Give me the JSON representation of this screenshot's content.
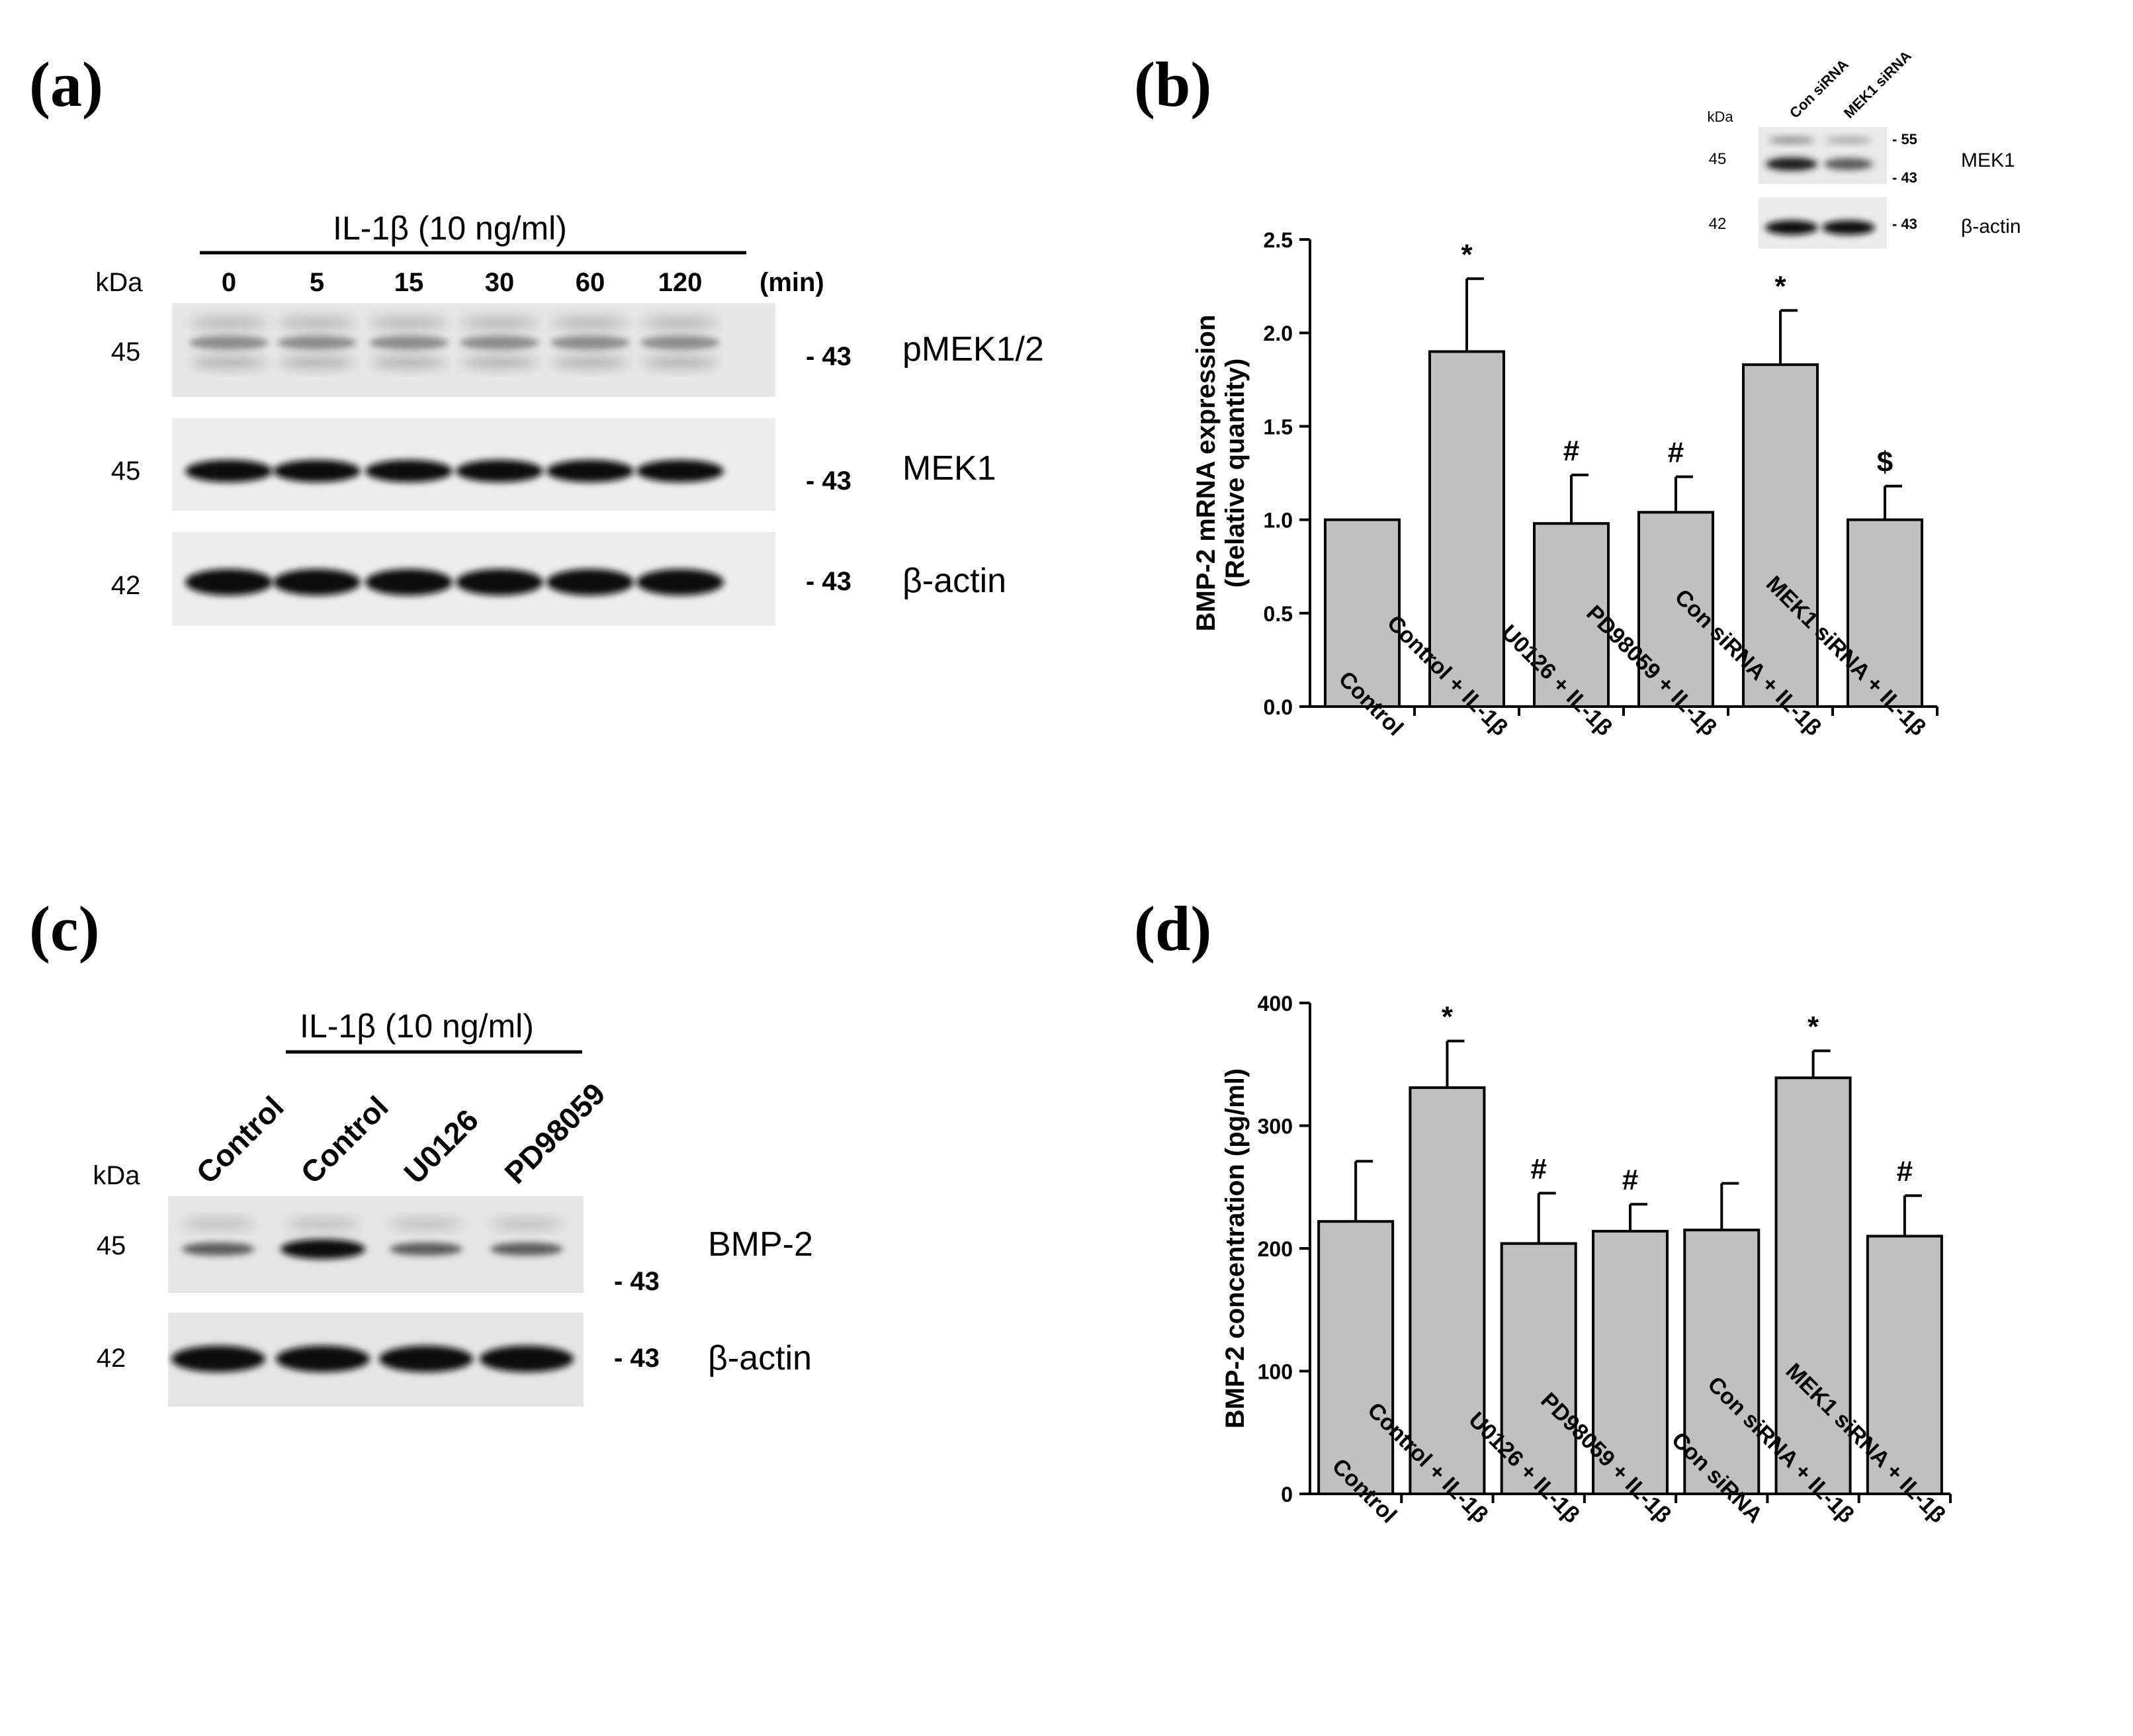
{
  "panels": {
    "a": {
      "label": "(a)",
      "treatment": "IL-1β (10 ng/ml)",
      "kda_header": "kDa",
      "time_points": [
        "0",
        "5",
        "15",
        "30",
        "60",
        "120"
      ],
      "time_unit": "(min)",
      "blots": [
        {
          "kda": "45",
          "marker": "- 43",
          "protein": "pMEK1/2"
        },
        {
          "kda": "45",
          "marker": "- 43",
          "protein": "MEK1"
        },
        {
          "kda": "42",
          "marker": "- 43",
          "protein": "β-actin"
        }
      ]
    },
    "b": {
      "label": "(b)",
      "inset": {
        "kda_header": "kDa",
        "lanes": [
          "Con siRNA",
          "MEK1 siRNA"
        ],
        "blots": [
          {
            "kda": "45",
            "markers": [
              "- 55",
              "- 43"
            ],
            "protein": "MEK1"
          },
          {
            "kda": "42",
            "markers": [
              "- 43"
            ],
            "protein": "β-actin"
          }
        ]
      }
    },
    "c": {
      "label": "(c)",
      "treatment": "IL-1β (10 ng/ml)",
      "kda_header": "kDa",
      "lanes": [
        "Control",
        "Control",
        "U0126",
        "PD98059"
      ],
      "blots": [
        {
          "kda": "45",
          "marker": "- 43",
          "protein": "BMP-2"
        },
        {
          "kda": "42",
          "marker": "- 43",
          "protein": "β-actin"
        }
      ]
    },
    "d": {
      "label": "(d)"
    }
  },
  "chart_data": [
    {
      "panel": "b",
      "type": "bar",
      "categories": [
        "Control",
        "Control + IL-1β",
        "U0126 + IL-1β",
        "PD98059 + IL-1β",
        "Con siRNA + IL-1β",
        "MEK1 siRNA + IL-1β"
      ],
      "values": [
        1.0,
        1.9,
        0.98,
        1.04,
        1.83,
        1.0
      ],
      "errors": [
        0,
        0.39,
        0.26,
        0.19,
        0.29,
        0.18
      ],
      "annotations": [
        "",
        "*",
        "#",
        "#",
        "*",
        "$"
      ],
      "ylabel_lines": [
        "BMP-2 mRNA expression",
        "(Relative quantity)"
      ],
      "ylim": [
        0,
        2.5
      ],
      "yticks": [
        "0.0",
        "0.5",
        "1.0",
        "1.5",
        "2.0",
        "2.5"
      ],
      "bar_color": "#c0c0c0"
    },
    {
      "panel": "d",
      "type": "bar",
      "categories": [
        "Control",
        "Control + IL-1β",
        "U0126 + IL-1β",
        "PD98059 + IL-1β",
        "Con siRNA",
        "Con siRNA + IL-1β",
        "MEK1 siRNA + IL-1β"
      ],
      "values": [
        222,
        331,
        204,
        214,
        215,
        339,
        210
      ],
      "errors": [
        49,
        38,
        41,
        22,
        38,
        22,
        33
      ],
      "annotations": [
        "",
        "*",
        "#",
        "#",
        "",
        "*",
        "#"
      ],
      "ylabel_lines": [
        "BMP-2 concentration (pg/ml)"
      ],
      "ylim": [
        0,
        400
      ],
      "yticks": [
        "0",
        "100",
        "200",
        "300",
        "400"
      ],
      "bar_color": "#c0c0c0"
    }
  ]
}
